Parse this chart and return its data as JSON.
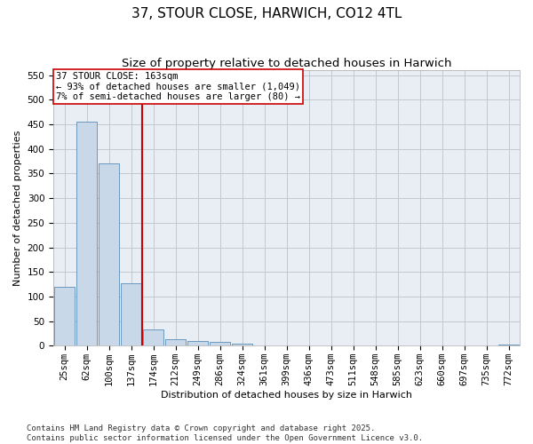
{
  "title": "37, STOUR CLOSE, HARWICH, CO12 4TL",
  "subtitle": "Size of property relative to detached houses in Harwich",
  "xlabel": "Distribution of detached houses by size in Harwich",
  "ylabel": "Number of detached properties",
  "categories": [
    "25sqm",
    "62sqm",
    "100sqm",
    "137sqm",
    "174sqm",
    "212sqm",
    "249sqm",
    "286sqm",
    "324sqm",
    "361sqm",
    "399sqm",
    "436sqm",
    "473sqm",
    "511sqm",
    "548sqm",
    "585sqm",
    "623sqm",
    "660sqm",
    "697sqm",
    "735sqm",
    "772sqm"
  ],
  "values": [
    120,
    455,
    370,
    127,
    33,
    14,
    10,
    7,
    5,
    1,
    0,
    1,
    0,
    1,
    0,
    0,
    0,
    0,
    0,
    0,
    2
  ],
  "bar_color": "#c8d8e8",
  "bar_edge_color": "#5b8db8",
  "grid_color": "#c0c8d0",
  "background_color": "#e8eef4",
  "vline_x_index": 3,
  "vline_color": "#cc0000",
  "annotation_text": "37 STOUR CLOSE: 163sqm\n← 93% of detached houses are smaller (1,049)\n7% of semi-detached houses are larger (80) →",
  "annotation_box_color": "#cc0000",
  "ylim": [
    0,
    560
  ],
  "yticks": [
    0,
    50,
    100,
    150,
    200,
    250,
    300,
    350,
    400,
    450,
    500,
    550
  ],
  "footer": "Contains HM Land Registry data © Crown copyright and database right 2025.\nContains public sector information licensed under the Open Government Licence v3.0.",
  "title_fontsize": 11,
  "subtitle_fontsize": 9.5,
  "axis_label_fontsize": 8,
  "tick_fontsize": 7.5,
  "annotation_fontsize": 7.5,
  "footer_fontsize": 6.5
}
